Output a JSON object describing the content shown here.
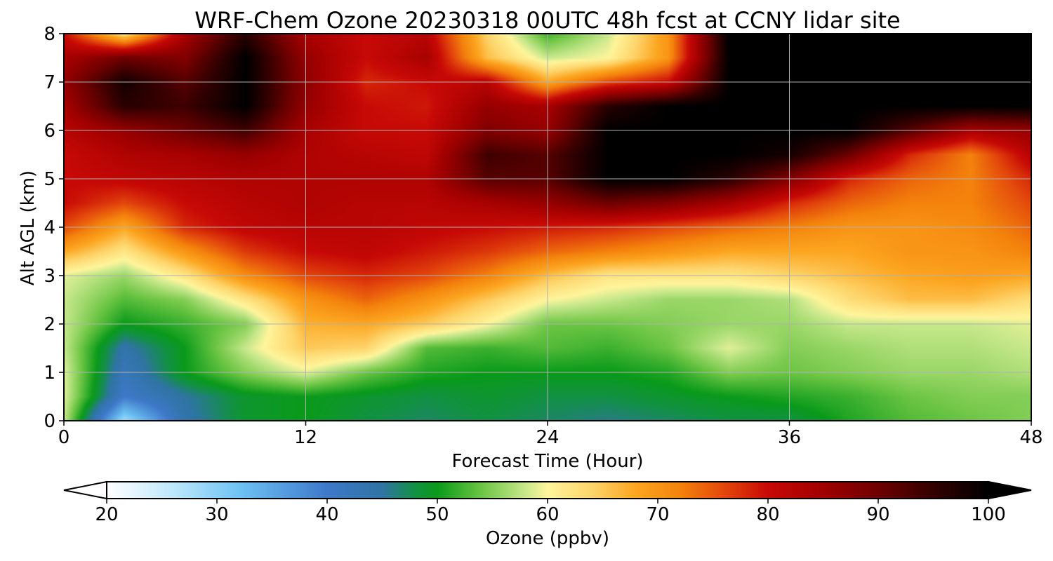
{
  "chart_data": {
    "type": "heatmap",
    "title": "WRF-Chem Ozone  20230318 00UTC 48h fcst at CCNY lidar site",
    "xlabel": "Forecast Time (Hour)",
    "ylabel": "Alt AGL (km)",
    "xlim": [
      0,
      48
    ],
    "ylim": [
      0,
      8
    ],
    "x_ticks": [
      0,
      12,
      24,
      36,
      48
    ],
    "y_ticks": [
      0,
      1,
      2,
      3,
      4,
      5,
      6,
      7,
      8
    ],
    "grid": true,
    "z": {
      "x": [
        0,
        3,
        6,
        9,
        12,
        15,
        18,
        21,
        24,
        27,
        30,
        33,
        36,
        39,
        42,
        45,
        48
      ],
      "y": [
        0,
        0.5,
        1,
        1.5,
        2,
        2.5,
        3,
        3.5,
        4,
        4.5,
        5,
        5.5,
        6,
        6.5,
        7,
        7.5,
        8
      ],
      "values": [
        [
          58,
          28,
          44,
          49,
          50,
          48,
          47,
          48,
          47,
          46,
          47,
          48,
          48,
          51,
          53,
          54,
          55
        ],
        [
          59,
          40,
          45,
          49,
          50,
          49,
          48,
          49,
          48,
          48,
          49,
          50,
          51,
          52,
          54,
          55,
          55
        ],
        [
          59,
          42,
          50,
          55,
          59,
          54,
          51,
          50,
          50,
          50,
          51,
          55,
          54,
          55,
          56,
          56,
          57
        ],
        [
          58,
          44,
          50,
          58,
          65,
          64,
          53,
          52,
          53,
          52,
          54,
          59,
          55,
          56,
          57,
          57,
          58
        ],
        [
          58,
          50,
          52,
          55,
          67,
          68,
          65,
          60,
          54,
          54,
          55,
          56,
          56,
          58,
          58,
          58,
          59
        ],
        [
          58,
          53,
          55,
          62,
          70,
          74,
          70,
          65,
          60,
          58,
          56,
          56,
          57,
          63,
          66,
          66,
          63
        ],
        [
          59,
          56,
          62,
          71,
          76,
          78,
          76,
          72,
          66,
          62,
          62,
          62,
          64,
          66,
          68,
          69,
          68
        ],
        [
          68,
          62,
          70,
          77,
          80,
          81,
          79,
          77,
          74,
          72,
          70,
          68,
          68,
          68,
          70,
          70,
          72
        ],
        [
          76,
          68,
          78,
          81,
          82,
          82,
          81,
          80,
          79,
          78,
          76,
          74,
          72,
          70,
          70,
          71,
          74
        ],
        [
          80,
          76,
          80,
          82,
          83,
          82,
          82,
          84,
          86,
          90,
          88,
          84,
          78,
          74,
          72,
          72,
          76
        ],
        [
          80,
          81,
          82,
          83,
          83,
          83,
          83,
          92,
          92,
          100,
          100,
          96,
          88,
          78,
          74,
          72,
          78
        ],
        [
          80,
          83,
          84,
          86,
          83,
          82,
          81,
          94,
          92,
          100,
          100,
          100,
          98,
          90,
          78,
          72,
          82
        ],
        [
          82,
          86,
          90,
          94,
          84,
          80,
          80,
          88,
          86,
          100,
          100,
          100,
          100,
          100,
          92,
          84,
          86
        ],
        [
          84,
          96,
          94,
          100,
          86,
          80,
          79,
          86,
          84,
          96,
          100,
          100,
          100,
          100,
          100,
          100,
          100
        ],
        [
          86,
          98,
          92,
          100,
          87,
          78,
          80,
          82,
          68,
          76,
          80,
          100,
          100,
          100,
          100,
          100,
          100
        ],
        [
          84,
          90,
          88,
          100,
          86,
          80,
          84,
          66,
          58,
          60,
          70,
          100,
          100,
          100,
          100,
          100,
          100
        ],
        [
          80,
          62,
          84,
          96,
          84,
          80,
          82,
          64,
          52,
          58,
          70,
          100,
          100,
          100,
          100,
          100,
          100
        ]
      ]
    },
    "colorbar": {
      "label": "Ozone  (ppbv)",
      "min": 20,
      "max": 100,
      "ticks": [
        20,
        30,
        40,
        50,
        60,
        70,
        80,
        90,
        100
      ],
      "extend": "both",
      "stops": [
        [
          20,
          "#ffffff"
        ],
        [
          26,
          "#bfe8fb"
        ],
        [
          32,
          "#6ec3f4"
        ],
        [
          40,
          "#3e78c9"
        ],
        [
          45,
          "#2f74a3"
        ],
        [
          48,
          "#129143"
        ],
        [
          50,
          "#0a9a1a"
        ],
        [
          54,
          "#6cc544"
        ],
        [
          58,
          "#c8e88c"
        ],
        [
          60,
          "#fff59c"
        ],
        [
          64,
          "#fdd56c"
        ],
        [
          68,
          "#fca621"
        ],
        [
          72,
          "#f4830c"
        ],
        [
          76,
          "#e3470c"
        ],
        [
          80,
          "#c70906"
        ],
        [
          85,
          "#a00000"
        ],
        [
          90,
          "#6e0000"
        ],
        [
          95,
          "#330000"
        ],
        [
          100,
          "#000000"
        ]
      ]
    }
  }
}
